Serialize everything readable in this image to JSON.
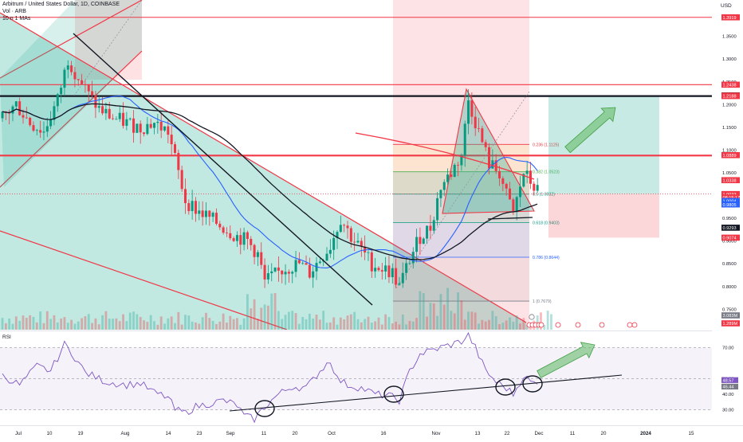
{
  "header": {
    "symbol_line": "Arbitrum / United States Dollar, 1D, COINBASE",
    "volume_line": "Vol · ARB",
    "ma_line": "10 n 1 MAs"
  },
  "price_axis": {
    "currency": "USD",
    "ticks": [
      "1.3500",
      "1.3000",
      "1.2500",
      "1.2000",
      "1.1500",
      "1.1000",
      "1.0500",
      "0.9500",
      "0.9000",
      "0.8500",
      "0.8000",
      "0.7500"
    ]
  },
  "price_badges": [
    {
      "label": "1.3919",
      "value": 1.3919,
      "color": "#f23645"
    },
    {
      "label": "1.2438",
      "value": 1.2438,
      "color": "#f23645"
    },
    {
      "label": "1.2202",
      "value": 1.2202,
      "color": "#131722"
    },
    {
      "label": "1.2197",
      "value": 1.2197,
      "color": "#f23645"
    },
    {
      "label": "1.2188",
      "value": 1.2188,
      "color": "#f23645"
    },
    {
      "label": "1.0889",
      "value": 1.0889,
      "color": "#f23645"
    },
    {
      "label": "1.0338",
      "value": 1.0338,
      "color": "#f23645"
    },
    {
      "label": "1.0033",
      "value": 1.0033,
      "color": "#f23645"
    },
    {
      "label": "08:15:17",
      "value": 0.9955,
      "color": "#f23645"
    },
    {
      "label": "1.0004",
      "value": 0.988,
      "color": "#2962ff"
    },
    {
      "label": "0.9805",
      "value": 0.9805,
      "color": "#2962ff"
    },
    {
      "label": "0.9293",
      "value": 0.9293,
      "color": "#131722"
    },
    {
      "label": "0.9074",
      "value": 0.9074,
      "color": "#f23645"
    }
  ],
  "volume_badges": [
    {
      "label": "3.083M",
      "color": "#787b86"
    },
    {
      "label": "1.289M",
      "color": "#f23645"
    }
  ],
  "fib_labels": [
    {
      "label": "0.236 (1.1125)",
      "value": 1.1125
    },
    {
      "label": "0.382 (1.0523)",
      "value": 1.0523
    },
    {
      "label": "0.5 (1.0032)",
      "value": 1.0032
    },
    {
      "label": "0.618 (0.9403)",
      "value": 0.9403
    },
    {
      "label": "0.786 (0.8644)",
      "value": 0.8644
    },
    {
      "label": "1 (0.7679)",
      "value": 0.7679
    }
  ],
  "rsi": {
    "label": "RSI",
    "ticks": [
      "70.00",
      "50.00",
      "40.00",
      "30.00"
    ],
    "badges": [
      "48.57",
      "46.44"
    ]
  },
  "time_axis": {
    "labels": [
      "Jul",
      "10",
      "19",
      "Aug",
      "14",
      "23",
      "Sep",
      "11",
      "20",
      "Oct",
      "16",
      "Nov",
      "13",
      "22",
      "Dec",
      "11",
      "20",
      "2024",
      "15"
    ]
  },
  "chart_data": {
    "type": "candlestick",
    "title": "Arbitrum / United States Dollar, 1D, COINBASE",
    "y_range": [
      0.705,
      1.43
    ],
    "x_range_days": [
      0,
      194
    ],
    "x_tick_labels": [
      "Jul",
      "10",
      "19",
      "Aug",
      "14",
      "23",
      "Sep",
      "11",
      "20",
      "Oct",
      "16",
      "Nov",
      "13",
      "22",
      "Dec",
      "11",
      "20",
      "2024",
      "15"
    ],
    "horizontal_levels": [
      1.3919,
      1.2438,
      1.2188,
      1.0889
    ],
    "fibonacci": [
      {
        "ratio": 0.236,
        "price": 1.1125
      },
      {
        "ratio": 0.382,
        "price": 1.0523
      },
      {
        "ratio": 0.5,
        "price": 1.0032
      },
      {
        "ratio": 0.618,
        "price": 0.9403
      },
      {
        "ratio": 0.786,
        "price": 0.8644
      },
      {
        "ratio": 1,
        "price": 0.7679
      }
    ],
    "last_price": 1.0033,
    "moving_averages": [
      {
        "name": "MA",
        "color": "#2962ff",
        "last": 0.9805
      },
      {
        "name": "MA",
        "color": "#131722",
        "last": 0.9293
      },
      {
        "name": "MA",
        "color": "#f23645",
        "last": 1.0338
      }
    ],
    "rsi_range": [
      20,
      80
    ],
    "rsi_levels": [
      70,
      50,
      30
    ],
    "rsi_last": 46.44
  }
}
